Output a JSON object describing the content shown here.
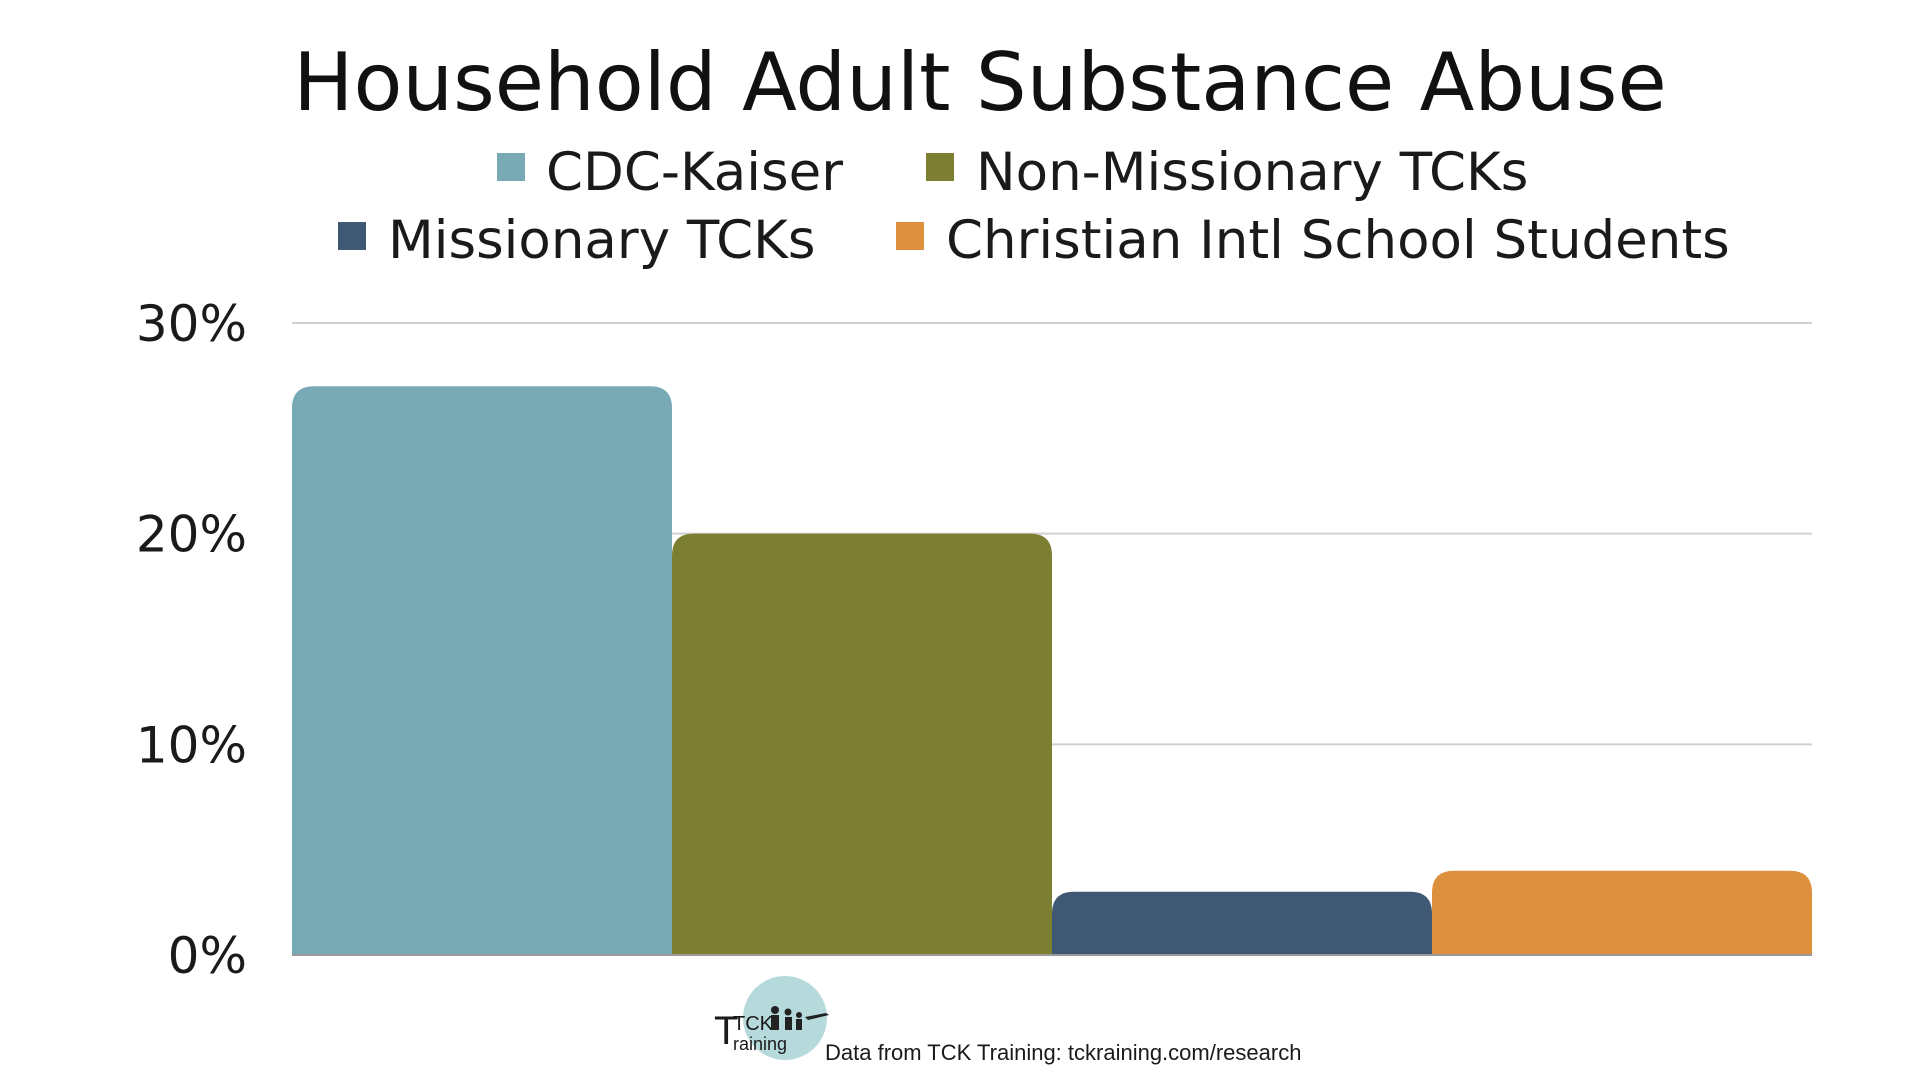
{
  "chart_data": {
    "type": "bar",
    "title": "Household Adult Substance Abuse",
    "xlabel": "",
    "ylabel": "",
    "categories": [
      ""
    ],
    "series": [
      {
        "name": "CDC-Kaiser",
        "values": [
          27
        ],
        "color": "#77aab5"
      },
      {
        "name": "Non-Missionary TCKs",
        "values": [
          20
        ],
        "color": "#7c7f32"
      },
      {
        "name": "Missionary TCKs",
        "values": [
          3
        ],
        "color": "#3f5874"
      },
      {
        "name": "Christian Intl School Students",
        "values": [
          4
        ],
        "color": "#dd913f"
      }
    ],
    "ylim": [
      0,
      30
    ],
    "yticks": [
      0,
      10,
      20,
      30
    ],
    "ytick_labels": [
      "0%",
      "10%",
      "20%",
      "30%"
    ],
    "grid": true,
    "legend_position": "top"
  },
  "footer": {
    "source_text": "Data from TCK Training: tckraining.com/research",
    "logo_text_top": "TCK",
    "logo_text_bottom": "raining",
    "logo_initial": "T"
  }
}
